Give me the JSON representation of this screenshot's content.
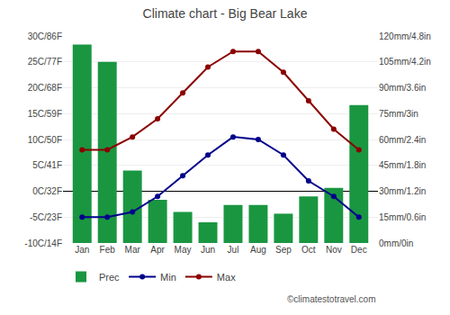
{
  "chart_data": {
    "type": "bar",
    "title": "Climate chart - Big Bear Lake",
    "categories": [
      "Jan",
      "Feb",
      "Mar",
      "Apr",
      "May",
      "Jun",
      "Jul",
      "Aug",
      "Sep",
      "Oct",
      "Nov",
      "Dec"
    ],
    "series": [
      {
        "name": "Prec",
        "type": "bar",
        "axis": "y2",
        "color": "#1a9641",
        "values": [
          115,
          105,
          42,
          25,
          18,
          12,
          22,
          22,
          17,
          27,
          32,
          80
        ]
      },
      {
        "name": "Min",
        "type": "line",
        "color": "#00008b",
        "marker": "circle",
        "line_style": "solid",
        "values": [
          -5,
          -5,
          -4,
          -1,
          3,
          7,
          10.5,
          10,
          7,
          2,
          -1,
          -5
        ]
      },
      {
        "name": "Max",
        "type": "line",
        "color": "#8b0000",
        "marker": "circle",
        "line_style": "solid",
        "values": [
          8,
          8,
          10.5,
          14,
          19,
          24,
          27,
          27,
          23,
          17.5,
          12,
          8
        ]
      }
    ],
    "ylim": [
      -10,
      30
    ],
    "yticks": [
      {
        "value": -10,
        "label": "-10C/14F"
      },
      {
        "value": -5,
        "label": "-5C/23F"
      },
      {
        "value": 0,
        "label": "0C/32F"
      },
      {
        "value": 5,
        "label": "5C/41F"
      },
      {
        "value": 10,
        "label": "10C/50F"
      },
      {
        "value": 15,
        "label": "15C/59F"
      },
      {
        "value": 20,
        "label": "20C/68F"
      },
      {
        "value": 25,
        "label": "25C/77F"
      },
      {
        "value": 30,
        "label": "30C/86F"
      }
    ],
    "y2lim": [
      0,
      120
    ],
    "y2ticks": [
      {
        "value": 0,
        "label": "0mm/0in"
      },
      {
        "value": 15,
        "label": "15mm/0.6in"
      },
      {
        "value": 30,
        "label": "30mm/1.2in"
      },
      {
        "value": 45,
        "label": "45mm/1.8in"
      },
      {
        "value": 60,
        "label": "60mm/2.4in"
      },
      {
        "value": 75,
        "label": "75mm/3in"
      },
      {
        "value": 90,
        "label": "90mm/3.6in"
      },
      {
        "value": 105,
        "label": "105mm/4.2in"
      },
      {
        "value": 120,
        "label": "120mm/4.8in"
      }
    ],
    "grid": true,
    "legend": "lower left",
    "annotations": [
      "©climatestotravel.com"
    ]
  }
}
